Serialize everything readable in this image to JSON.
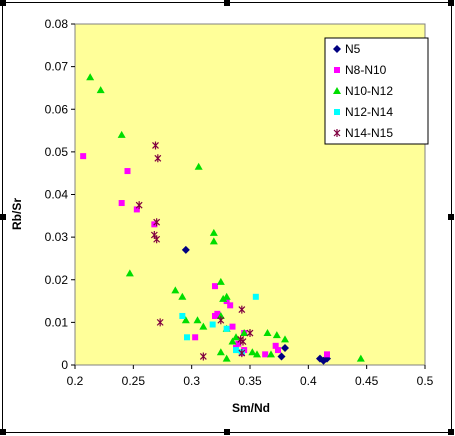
{
  "chart_data": {
    "type": "scatter",
    "title": "",
    "xlabel": "Sm/Nd",
    "ylabel": "Rb/Sr",
    "xlim": [
      0.2,
      0.5
    ],
    "ylim": [
      0,
      0.08
    ],
    "x_ticks": [
      "0.2",
      "0.25",
      "0.3",
      "0.35",
      "0.4",
      "0.45",
      "0.5"
    ],
    "y_ticks": [
      "0",
      "0.01",
      "0.02",
      "0.03",
      "0.04",
      "0.05",
      "0.06",
      "0.07",
      "0.08"
    ],
    "plot_background": "#ffff99",
    "grid": false,
    "legend_position": "right",
    "series": [
      {
        "name": "N5",
        "marker": "diamond",
        "color": "#000080",
        "points": [
          [
            0.295,
            0.027
          ],
          [
            0.38,
            0.004
          ],
          [
            0.377,
            0.002
          ],
          [
            0.41,
            0.0015
          ],
          [
            0.413,
            0.001
          ],
          [
            0.416,
            0.0015
          ]
        ]
      },
      {
        "name": "N8-N10",
        "marker": "square",
        "color": "#ff00ff",
        "points": [
          [
            0.207,
            0.049
          ],
          [
            0.245,
            0.0455
          ],
          [
            0.24,
            0.038
          ],
          [
            0.253,
            0.0365
          ],
          [
            0.268,
            0.033
          ],
          [
            0.32,
            0.0185
          ],
          [
            0.33,
            0.015
          ],
          [
            0.333,
            0.014
          ],
          [
            0.32,
            0.0115
          ],
          [
            0.322,
            0.012
          ],
          [
            0.303,
            0.0065
          ],
          [
            0.335,
            0.009
          ],
          [
            0.338,
            0.004
          ],
          [
            0.345,
            0.0075
          ],
          [
            0.34,
            0.005
          ],
          [
            0.343,
            0.0028
          ],
          [
            0.345,
            0.0035
          ],
          [
            0.363,
            0.0025
          ],
          [
            0.374,
            0.0035
          ],
          [
            0.372,
            0.0045
          ],
          [
            0.416,
            0.0025
          ]
        ]
      },
      {
        "name": "N10-N12",
        "marker": "triangle",
        "color": "#00dd00",
        "points": [
          [
            0.213,
            0.0675
          ],
          [
            0.222,
            0.0645
          ],
          [
            0.24,
            0.054
          ],
          [
            0.306,
            0.0465
          ],
          [
            0.319,
            0.031
          ],
          [
            0.319,
            0.029
          ],
          [
            0.247,
            0.0215
          ],
          [
            0.325,
            0.0195
          ],
          [
            0.286,
            0.0175
          ],
          [
            0.292,
            0.016
          ],
          [
            0.33,
            0.016
          ],
          [
            0.327,
            0.0155
          ],
          [
            0.295,
            0.0105
          ],
          [
            0.305,
            0.0105
          ],
          [
            0.325,
            0.0115
          ],
          [
            0.31,
            0.009
          ],
          [
            0.33,
            0.0085
          ],
          [
            0.345,
            0.0075
          ],
          [
            0.338,
            0.0065
          ],
          [
            0.365,
            0.0075
          ],
          [
            0.373,
            0.007
          ],
          [
            0.335,
            0.0055
          ],
          [
            0.38,
            0.006
          ],
          [
            0.325,
            0.003
          ],
          [
            0.352,
            0.003
          ],
          [
            0.356,
            0.0025
          ],
          [
            0.368,
            0.0025
          ],
          [
            0.33,
            0.0015
          ],
          [
            0.445,
            0.0015
          ]
        ]
      },
      {
        "name": "N12-N14",
        "marker": "square",
        "color": "#00ffff",
        "points": [
          [
            0.292,
            0.0115
          ],
          [
            0.355,
            0.016
          ],
          [
            0.318,
            0.0095
          ],
          [
            0.33,
            0.0085
          ],
          [
            0.296,
            0.0065
          ],
          [
            0.338,
            0.0035
          ],
          [
            0.343,
            0.003
          ]
        ]
      },
      {
        "name": "N14-N15",
        "marker": "star",
        "color": "#800040",
        "points": [
          [
            0.269,
            0.0515
          ],
          [
            0.271,
            0.0485
          ],
          [
            0.255,
            0.0375
          ],
          [
            0.27,
            0.0335
          ],
          [
            0.268,
            0.0305
          ],
          [
            0.27,
            0.0295
          ],
          [
            0.273,
            0.01
          ],
          [
            0.31,
            0.002
          ],
          [
            0.343,
            0.013
          ],
          [
            0.342,
            0.006
          ],
          [
            0.344,
            0.0055
          ],
          [
            0.35,
            0.0075
          ],
          [
            0.325,
            0.0105
          ],
          [
            0.343,
            0.0028
          ]
        ]
      }
    ]
  }
}
